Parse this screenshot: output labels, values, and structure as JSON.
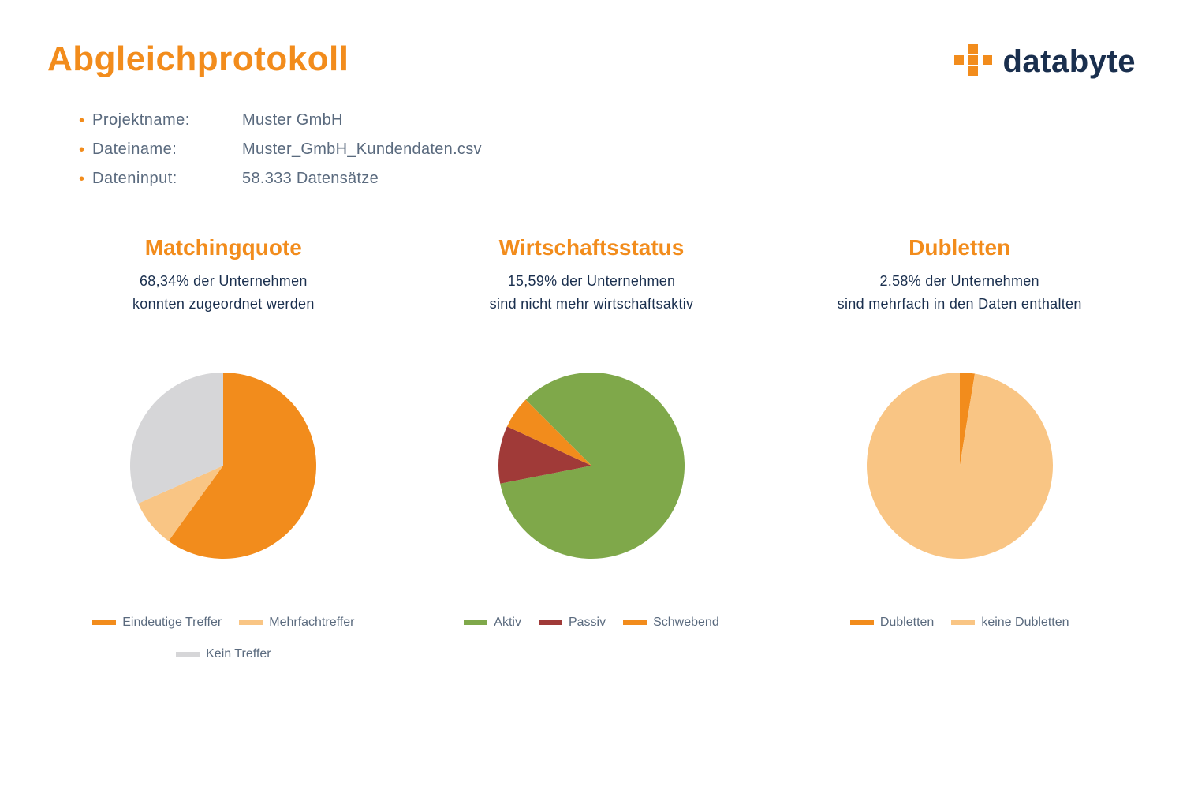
{
  "header": {
    "title": "Abgleichprotokoll",
    "logo_text": "databyte",
    "logo_accent_color": "#f28c1c",
    "logo_text_color": "#1a2f4e"
  },
  "meta": {
    "rows": [
      {
        "label": "Projektname:",
        "value": "Muster GmbH"
      },
      {
        "label": "Dateiname:",
        "value": "Muster_GmbH_Kundendaten.csv"
      },
      {
        "label": "Dateninput:",
        "value": "58.333 Datensätze"
      }
    ],
    "bullet_color": "#f28c1c",
    "text_color": "#5a6a7e"
  },
  "colors": {
    "accent": "#f28c1c",
    "text_dark": "#1a2f4e",
    "text_muted": "#5a6a7e",
    "background": "#ffffff"
  },
  "charts": [
    {
      "id": "matching",
      "type": "pie",
      "title": "Matchingquote",
      "subtitle_line1": "68,34% der Unternehmen",
      "subtitle_line2": "konnten zugeordnet werden",
      "radius": 118,
      "start_angle_deg": -90,
      "direction": "clockwise",
      "slices": [
        {
          "label": "Eindeutige Treffer",
          "value": 60.0,
          "color": "#f28c1c"
        },
        {
          "label": "Mehrfachtreffer",
          "value": 8.34,
          "color": "#f9c584"
        },
        {
          "label": "Kein Treffer",
          "value": 31.66,
          "color": "#d6d6d8"
        }
      ],
      "legend": [
        {
          "label": "Eindeutige Treffer",
          "color": "#f28c1c"
        },
        {
          "label": "Mehrfachtreffer",
          "color": "#f9c584"
        },
        {
          "label": "Kein Treffer",
          "color": "#d6d6d8"
        }
      ]
    },
    {
      "id": "status",
      "type": "pie",
      "title": "Wirtschaftsstatus",
      "subtitle_line1": "15,59% der Unternehmen",
      "subtitle_line2": "sind nicht mehr wirtschaftsaktiv",
      "radius": 118,
      "start_angle_deg": -135,
      "direction": "clockwise",
      "slices": [
        {
          "label": "Aktiv",
          "value": 84.41,
          "color": "#7fa84a"
        },
        {
          "label": "Passiv",
          "value": 10.0,
          "color": "#a03a38"
        },
        {
          "label": "Schwebend",
          "value": 5.59,
          "color": "#f28c1c"
        }
      ],
      "legend": [
        {
          "label": "Aktiv",
          "color": "#7fa84a"
        },
        {
          "label": "Passiv",
          "color": "#a03a38"
        },
        {
          "label": "Schwebend",
          "color": "#f28c1c"
        }
      ]
    },
    {
      "id": "dubletten",
      "type": "pie",
      "title": "Dubletten",
      "subtitle_line1": "2.58% der Unternehmen",
      "subtitle_line2": "sind mehrfach in den Daten enthalten",
      "radius": 118,
      "start_angle_deg": -90,
      "direction": "clockwise",
      "slices": [
        {
          "label": "Dubletten",
          "value": 2.58,
          "color": "#f28c1c"
        },
        {
          "label": "keine Dubletten",
          "value": 97.42,
          "color": "#f9c584"
        }
      ],
      "legend": [
        {
          "label": "Dubletten",
          "color": "#f28c1c"
        },
        {
          "label": "keine Dubletten",
          "color": "#f9c584"
        }
      ]
    }
  ]
}
